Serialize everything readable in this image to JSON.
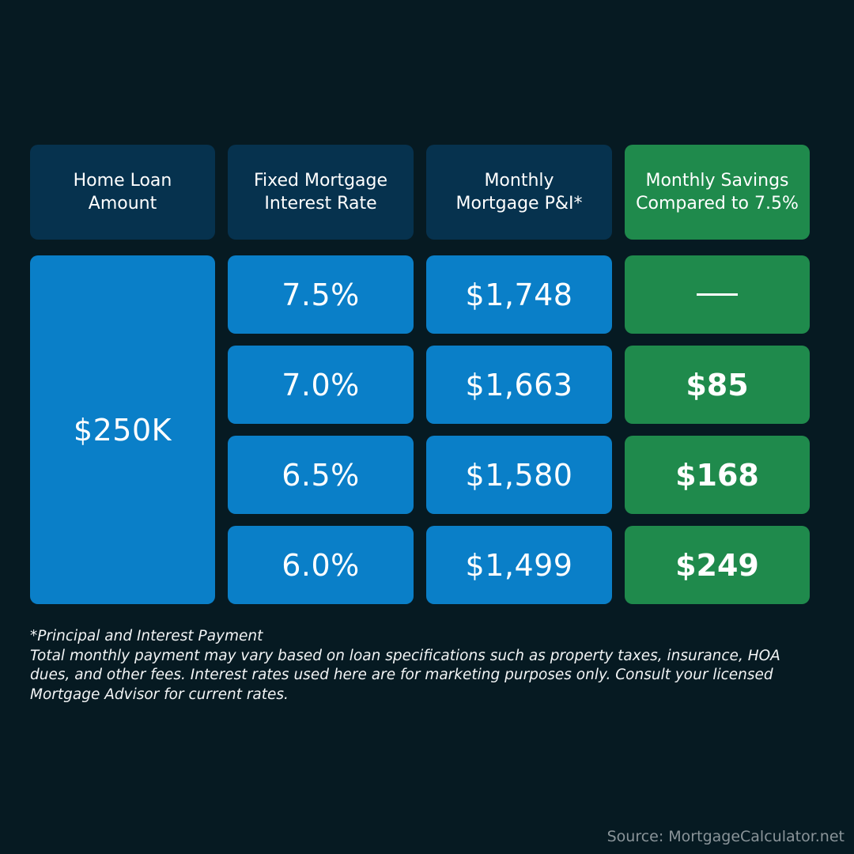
{
  "headers": {
    "loan_amount": "Home Loan\nAmount",
    "interest_rate": "Fixed Mortgage\nInterest Rate",
    "monthly_pi": "Monthly\nMortgage P&I*",
    "monthly_savings": "Monthly Savings\nCompared to 7.5%"
  },
  "loan_amount": "$250K",
  "rows": [
    {
      "rate": "7.5%",
      "payment": "$1,748",
      "savings": "—"
    },
    {
      "rate": "7.0%",
      "payment": "$1,663",
      "savings": "$85"
    },
    {
      "rate": "6.5%",
      "payment": "$1,580",
      "savings": "$168"
    },
    {
      "rate": "6.0%",
      "payment": "$1,499",
      "savings": "$249"
    }
  ],
  "footnote": {
    "line1": "*Principal and Interest Payment",
    "line2": "Total monthly payment may vary based on loan specifications such as property taxes, insurance, HOA dues, and other fees. Interest rates used here are for marketing purposes only. Consult your licensed Mortgage Advisor for current rates."
  },
  "source": "Source: MortgageCalculator.net",
  "colors": {
    "background": "#061a22",
    "header_blue": "#06324e",
    "cell_blue": "#0a7fc8",
    "green": "#1f8a4c"
  }
}
